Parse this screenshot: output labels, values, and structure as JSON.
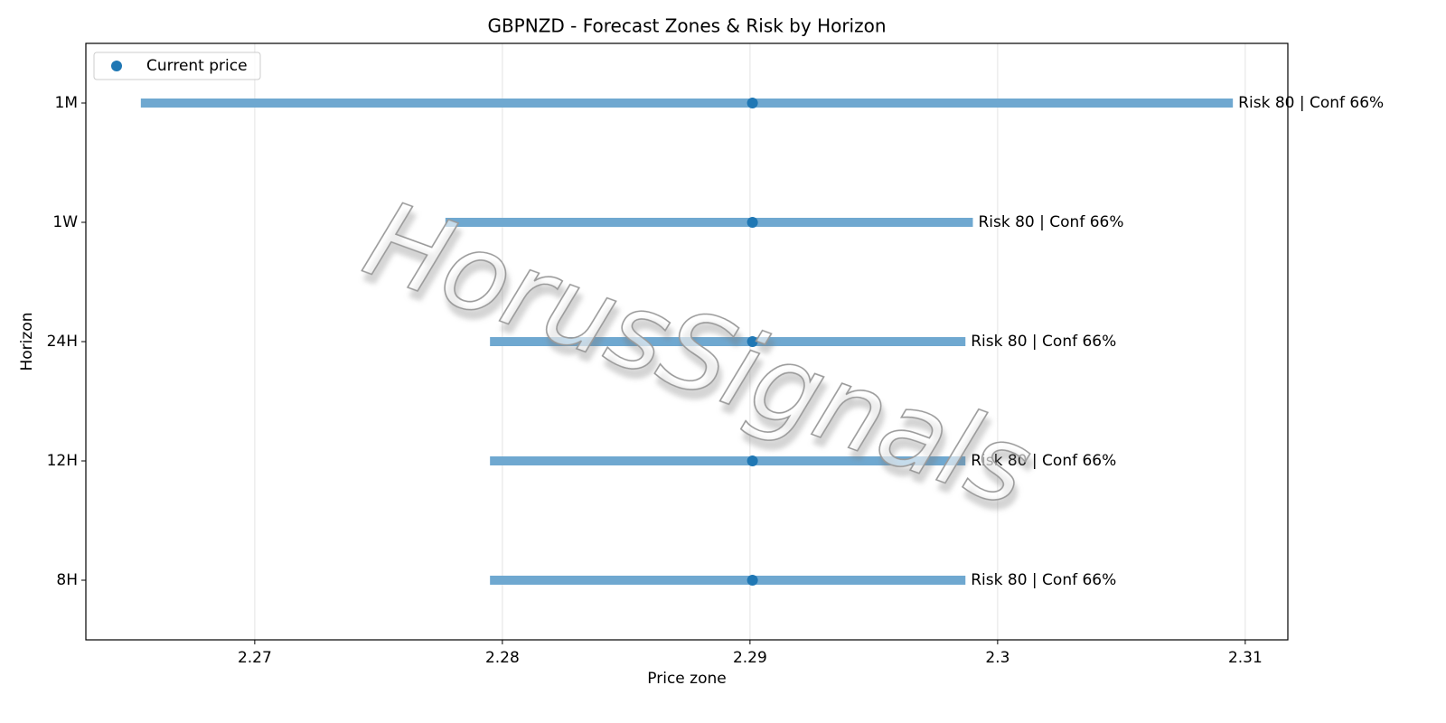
{
  "chart_data": {
    "type": "range",
    "title": "GBPNZD - Forecast Zones & Risk by Horizon",
    "xlabel": "Price zone",
    "ylabel": "Horizon",
    "categories": [
      "1M",
      "1W",
      "24H",
      "12H",
      "8H"
    ],
    "low": [
      2.2654,
      2.2777,
      2.2795,
      2.2795,
      2.2795
    ],
    "high": [
      2.3095,
      2.299,
      2.2987,
      2.2987,
      2.2987
    ],
    "zone_color": "#6fa8d0",
    "series": [
      {
        "name": "Current price",
        "color": "#1f77b4",
        "values": [
          2.2901,
          2.2901,
          2.2901,
          2.2901,
          2.2901
        ]
      }
    ],
    "annotations": [
      "Risk 80 | Conf 66%",
      "Risk 80 | Conf 66%",
      "Risk 80 | Conf 66%",
      "Risk 80 | Conf 66%",
      "Risk 80 | Conf 66%"
    ],
    "xlim": [
      2.26318,
      2.31172
    ],
    "xticks": [
      2.27,
      2.28,
      2.29,
      2.3,
      2.31
    ],
    "grid": true,
    "legend": "upper left",
    "watermark": "HorusSignals"
  }
}
